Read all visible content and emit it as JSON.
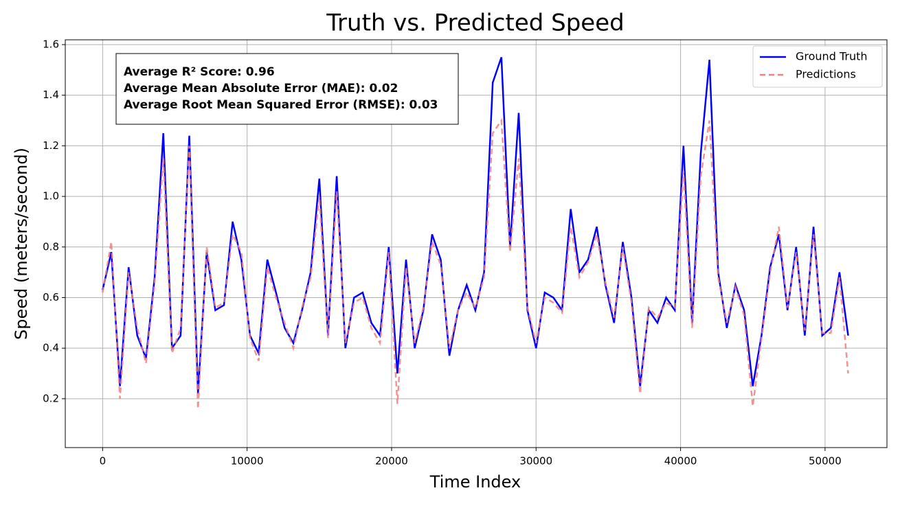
{
  "chart_data": {
    "type": "line",
    "title": "Truth vs. Predicted Speed",
    "xlabel": "Time Index",
    "ylabel": "Speed (meters/second)",
    "annotation": [
      "Average R² Score: 0.96",
      "Average Mean Absolute Error (MAE): 0.02",
      "Average Root Mean Squared Error (RMSE): 0.03"
    ],
    "x": [
      0,
      600,
      1200,
      1800,
      2400,
      3000,
      3600,
      4200,
      4800,
      5400,
      6000,
      6600,
      7200,
      7800,
      8400,
      9000,
      9600,
      10200,
      10800,
      11400,
      12000,
      12600,
      13200,
      13800,
      14400,
      15000,
      15600,
      16200,
      16800,
      17400,
      18000,
      18600,
      19200,
      19800,
      20400,
      21000,
      21600,
      22200,
      22800,
      23400,
      24000,
      24600,
      25200,
      25800,
      26400,
      27000,
      27600,
      28200,
      28800,
      29400,
      30000,
      30600,
      31200,
      31800,
      32400,
      33000,
      33600,
      34200,
      34800,
      35400,
      36000,
      36600,
      37200,
      37800,
      38400,
      39000,
      39600,
      40200,
      40800,
      41400,
      42000,
      42600,
      43200,
      43800,
      44400,
      45000,
      45600,
      46200,
      46800,
      47400,
      48000,
      48600,
      49200,
      49800,
      50400,
      51000,
      51600
    ],
    "series": [
      {
        "name": "Ground Truth",
        "color": "#0000ff",
        "dashed": false,
        "values": [
          0.63,
          0.78,
          0.25,
          0.72,
          0.45,
          0.36,
          0.68,
          1.25,
          0.4,
          0.45,
          1.24,
          0.22,
          0.78,
          0.55,
          0.57,
          0.9,
          0.75,
          0.45,
          0.38,
          0.75,
          0.62,
          0.48,
          0.42,
          0.55,
          0.7,
          1.07,
          0.45,
          1.08,
          0.4,
          0.6,
          0.62,
          0.5,
          0.45,
          0.8,
          0.3,
          0.75,
          0.4,
          0.55,
          0.85,
          0.75,
          0.37,
          0.55,
          0.65,
          0.55,
          0.7,
          1.45,
          1.55,
          0.8,
          1.33,
          0.55,
          0.4,
          0.62,
          0.6,
          0.55,
          0.95,
          0.7,
          0.75,
          0.88,
          0.65,
          0.5,
          0.82,
          0.6,
          0.25,
          0.55,
          0.5,
          0.6,
          0.55,
          1.2,
          0.5,
          1.17,
          1.54,
          0.7,
          0.48,
          0.65,
          0.55,
          0.25,
          0.45,
          0.72,
          0.85,
          0.55,
          0.8,
          0.45,
          0.88,
          0.45,
          0.48,
          0.7,
          0.45
        ]
      },
      {
        "name": "Predictions",
        "color": "#f08080",
        "dashed": true,
        "values": [
          0.62,
          0.82,
          0.2,
          0.7,
          0.48,
          0.34,
          0.66,
          1.15,
          0.38,
          0.48,
          1.2,
          0.16,
          0.8,
          0.56,
          0.58,
          0.85,
          0.78,
          0.44,
          0.35,
          0.72,
          0.6,
          0.5,
          0.4,
          0.56,
          0.68,
          1.0,
          0.44,
          1.02,
          0.42,
          0.58,
          0.6,
          0.48,
          0.42,
          0.78,
          0.18,
          0.72,
          0.42,
          0.56,
          0.82,
          0.73,
          0.4,
          0.55,
          0.62,
          0.56,
          0.68,
          1.25,
          1.3,
          0.78,
          1.15,
          0.56,
          0.42,
          0.6,
          0.58,
          0.54,
          0.88,
          0.68,
          0.74,
          0.85,
          0.66,
          0.52,
          0.8,
          0.58,
          0.22,
          0.56,
          0.52,
          0.58,
          0.56,
          1.1,
          0.48,
          1.08,
          1.3,
          0.68,
          0.5,
          0.64,
          0.53,
          0.17,
          0.44,
          0.7,
          0.88,
          0.56,
          0.78,
          0.47,
          0.85,
          0.46,
          0.46,
          0.68,
          0.3
        ]
      }
    ],
    "xlim": [
      -2585,
      54285
    ],
    "ylim": [
      0.007,
      1.619
    ],
    "xticks": [
      0,
      10000,
      20000,
      30000,
      40000,
      50000
    ],
    "yticks": [
      0.2,
      0.4,
      0.6,
      0.8,
      {
        "value": 1,
        "label": "1.0"
      },
      1.2,
      1.4,
      1.6
    ],
    "grid": true,
    "legend": "upper-right"
  }
}
